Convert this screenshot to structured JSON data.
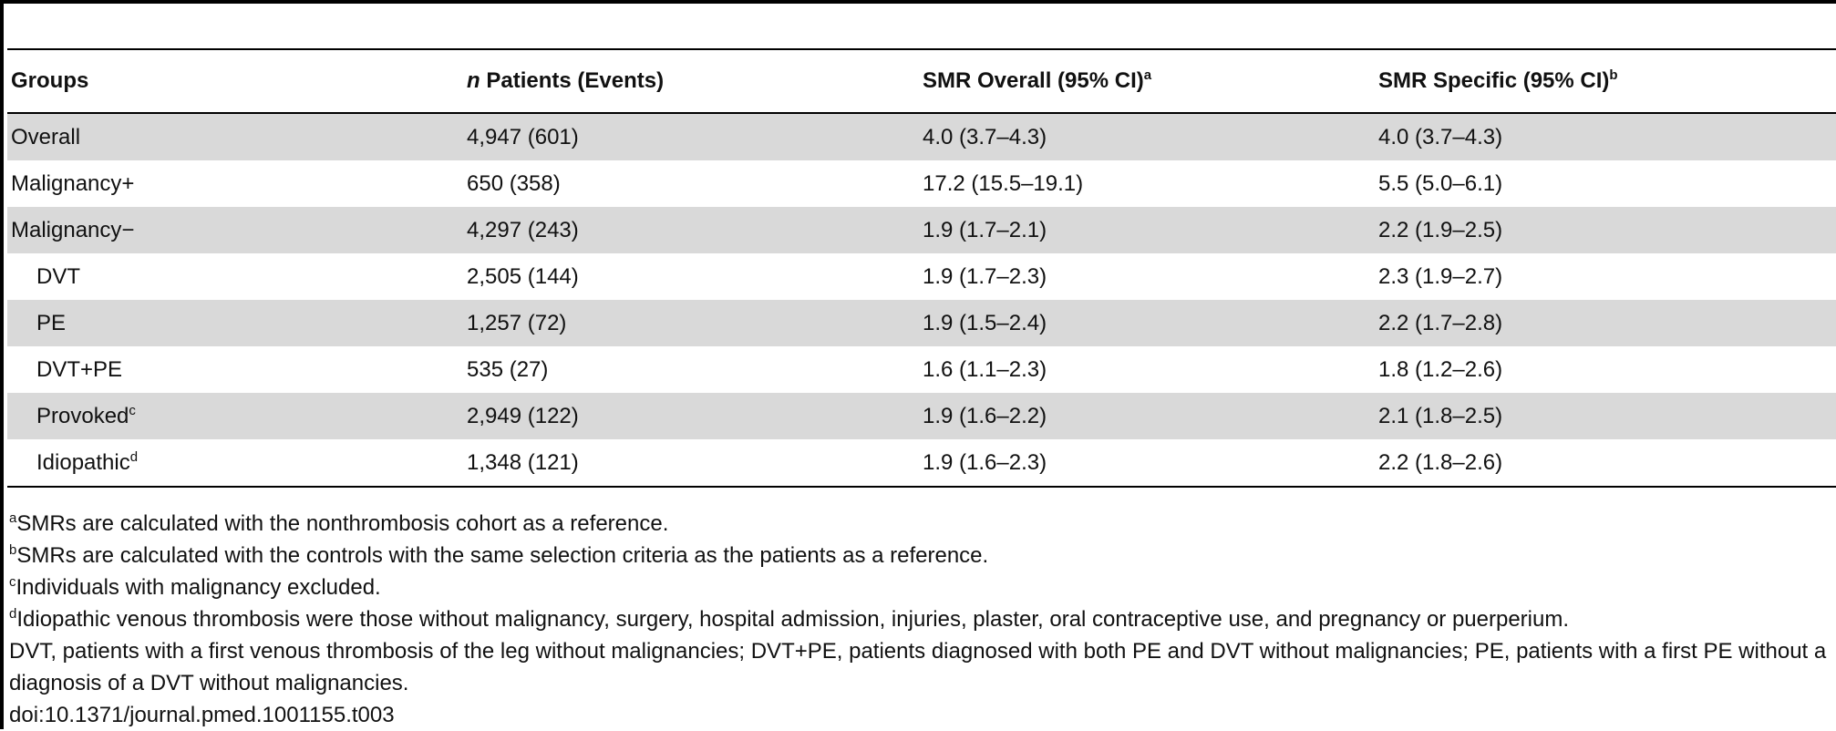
{
  "table": {
    "headers": {
      "groups": "Groups",
      "n_italic": "n",
      "patients_events": " Patients (Events)",
      "smr_overall": "SMR Overall (95% CI)",
      "smr_overall_sup": "a",
      "smr_specific": "SMR Specific (95% CI)",
      "smr_specific_sup": "b"
    },
    "rows": [
      {
        "group": "Overall",
        "group_sup": "",
        "n": "4,947 (601)",
        "overall": "4.0 (3.7–4.3)",
        "specific": "4.0 (3.7–4.3)"
      },
      {
        "group": "Malignancy+",
        "group_sup": "",
        "n": "650 (358)",
        "overall": "17.2 (15.5–19.1)",
        "specific": "5.5 (5.0–6.1)"
      },
      {
        "group": "Malignancy−",
        "group_sup": "",
        "n": "4,297 (243)",
        "overall": "1.9 (1.7–2.1)",
        "specific": "2.2 (1.9–2.5)"
      },
      {
        "group": "DVT",
        "group_sup": "",
        "n": "2,505 (144)",
        "overall": "1.9 (1.7–2.3)",
        "specific": "2.3 (1.9–2.7)"
      },
      {
        "group": "PE",
        "group_sup": "",
        "n": "1,257 (72)",
        "overall": "1.9 (1.5–2.4)",
        "specific": "2.2 (1.7–2.8)"
      },
      {
        "group": "DVT+PE",
        "group_sup": "",
        "n": "535 (27)",
        "overall": "1.6 (1.1–2.3)",
        "specific": "1.8 (1.2–2.6)"
      },
      {
        "group": "Provoked",
        "group_sup": "c",
        "n": "2,949 (122)",
        "overall": "1.9 (1.6–2.2)",
        "specific": "2.1 (1.8–2.5)"
      },
      {
        "group": "Idiopathic",
        "group_sup": "d",
        "n": "1,348 (121)",
        "overall": "1.9 (1.6–2.3)",
        "specific": "2.2 (1.8–2.6)"
      }
    ]
  },
  "footnotes": {
    "a_sup": "a",
    "a_text": "SMRs are calculated with the nonthrombosis cohort as a reference.",
    "b_sup": "b",
    "b_text": "SMRs are calculated with the controls with the same selection criteria as the patients as a reference.",
    "c_sup": "c",
    "c_text": "Individuals with malignancy excluded.",
    "d_sup": "d",
    "d_text": "Idiopathic venous thrombosis were those without malignancy, surgery, hospital admission, injuries, plaster, oral contraceptive use, and pregnancy or puerperium.",
    "abbrev": "DVT, patients with a first venous thrombosis of the leg without malignancies; DVT+PE, patients diagnosed with both PE and DVT without malignancies; PE, patients with a first PE without a diagnosis of a DVT without malignancies.",
    "doi": "doi:10.1371/journal.pmed.1001155.t003"
  }
}
